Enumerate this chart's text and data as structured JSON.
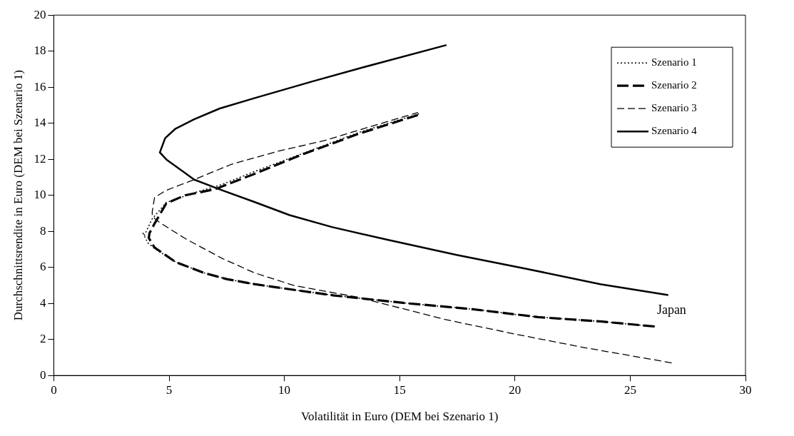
{
  "chart_data": {
    "type": "line",
    "xlabel": "Volatilität in Euro (DEM bei Szenario 1)",
    "ylabel": "Durchschnittsrendite in Euro (DEM bei Szenario 1)",
    "xlim": [
      0,
      30
    ],
    "ylim": [
      0,
      20
    ],
    "xticks": [
      0,
      5,
      10,
      15,
      20,
      25,
      30
    ],
    "yticks": [
      0,
      2,
      4,
      6,
      8,
      10,
      12,
      14,
      16,
      18,
      20
    ],
    "grid": false,
    "legend": "top right",
    "marker": "none",
    "series": [
      {
        "name": "Szenario 1",
        "color": "#000000",
        "line_style": "dotted",
        "x": [
          26.06,
          23.7,
          21.0,
          18.1,
          15.3,
          12.17,
          10.7,
          8.7,
          7.5,
          6.5,
          5.28,
          4.37,
          4.07,
          3.87,
          3.93,
          4.27,
          4.88,
          6.09,
          7.3,
          8.72,
          10.74,
          13.26,
          15.9
        ],
        "values": [
          2.72,
          3.0,
          3.24,
          3.69,
          4.01,
          4.44,
          4.7,
          5.07,
          5.35,
          5.7,
          6.3,
          7.05,
          7.37,
          7.9,
          7.78,
          8.7,
          9.6,
          10.14,
          10.6,
          11.33,
          12.3,
          13.5,
          14.55
        ]
      },
      {
        "name": "Szenario 2",
        "color": "#000000",
        "line_style": "dashed",
        "x": [
          26.06,
          23.7,
          21.0,
          18.1,
          15.3,
          12.17,
          10.7,
          8.7,
          7.5,
          6.5,
          5.28,
          4.37,
          4.12,
          4.15,
          4.37,
          4.88,
          5.69,
          7.0,
          8.72,
          10.74,
          13.26,
          15.9
        ],
        "values": [
          2.72,
          3.0,
          3.24,
          3.69,
          4.01,
          4.44,
          4.7,
          5.07,
          5.35,
          5.7,
          6.3,
          7.1,
          7.63,
          7.9,
          8.43,
          9.55,
          10.0,
          10.34,
          11.2,
          12.25,
          13.43,
          14.5
        ]
      },
      {
        "name": "Szenario 3",
        "color": "#000000",
        "line_style": "dashed",
        "x": [
          26.8,
          23.0,
          20.0,
          17.0,
          13.2,
          10.4,
          8.7,
          7.3,
          5.7,
          4.58,
          4.27,
          4.27,
          4.37,
          4.88,
          6.09,
          7.7,
          9.73,
          11.75,
          13.26,
          15.8
        ],
        "values": [
          0.7,
          1.55,
          2.3,
          3.1,
          4.34,
          5.0,
          5.7,
          6.5,
          7.6,
          8.5,
          8.83,
          9.09,
          9.88,
          10.28,
          10.87,
          11.72,
          12.45,
          13.04,
          13.63,
          14.6
        ]
      },
      {
        "name": "Szenario 4",
        "color": "#000000",
        "line_style": "solid",
        "x": [
          26.65,
          23.7,
          20.5,
          17.47,
          14.44,
          12.06,
          10.23,
          8.72,
          7.3,
          6.09,
          4.88,
          4.6,
          4.83,
          5.28,
          6.09,
          7.2,
          8.72,
          11.24,
          13.26,
          17.03
        ],
        "values": [
          4.46,
          5.07,
          5.92,
          6.69,
          7.54,
          8.24,
          8.9,
          9.62,
          10.28,
          10.87,
          11.99,
          12.38,
          13.17,
          13.7,
          14.22,
          14.82,
          15.4,
          16.33,
          17.05,
          18.34
        ]
      }
    ],
    "annotations": [
      "Japan"
    ]
  }
}
